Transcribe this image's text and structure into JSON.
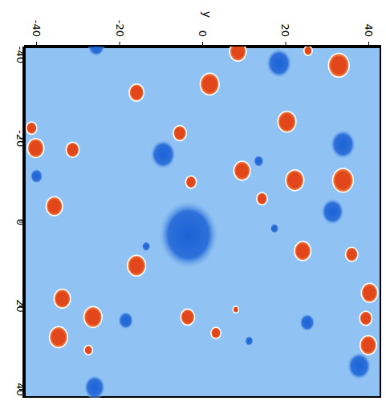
{
  "chart_data": {
    "type": "scatter",
    "xlabel": "y",
    "xlim": [
      -43,
      43
    ],
    "ylim": [
      -42,
      42
    ],
    "xticks": [
      -40,
      -20,
      0,
      20,
      40
    ],
    "yticks": [
      -40,
      -20,
      0,
      20,
      40
    ],
    "grid": false,
    "background": "#90c3f3",
    "series": [
      {
        "color": "#e2461b",
        "marker": "vortex",
        "x": [
          8.5,
          25.4,
          32.8,
          1.7,
          -15.9,
          20.3,
          -41.2,
          -40.2,
          -31.3,
          -5.5,
          9.5,
          22.2,
          33.8,
          -2.8,
          14.3,
          -35.7,
          24.1,
          35.9,
          -15.9,
          -33.8,
          -26.4,
          -3.6,
          -34.7,
          3.2,
          40.2,
          39.3,
          39.9,
          -27.5,
          8
        ],
        "y": [
          -40.8,
          -41,
          -37.5,
          -33,
          -31,
          -24,
          -22.5,
          -17.7,
          -17.3,
          -21.3,
          -12.3,
          -10,
          -10,
          -9.6,
          -5.6,
          -3.8,
          6.9,
          7.7,
          10.4,
          18.3,
          22.7,
          22.7,
          27.5,
          26.5,
          16.9,
          23,
          29.4,
          30.6,
          20.9
        ],
        "radius": [
          2,
          1,
          2.5,
          2.3,
          1.8,
          2.2,
          1.3,
          2,
          1.6,
          1.6,
          2,
          2.2,
          2.5,
          1.3,
          1.3,
          2,
          2,
          1.5,
          2.2,
          2,
          2.2,
          1.7,
          2.2,
          1.2,
          2,
          1.5,
          2,
          1,
          0.7
        ]
      },
      {
        "color": "#1c62d6",
        "marker": "vortex",
        "x": [
          -3.4,
          18.4,
          -9.5,
          33.8,
          31.3,
          -40,
          -18.5,
          25.2,
          37.7,
          -26,
          -25.6,
          13.5,
          17.3,
          11.2,
          -13.6
        ],
        "y": [
          3,
          -38,
          -16.2,
          -18.6,
          -2.5,
          -11,
          23.5,
          24,
          34.4,
          39.5,
          -42,
          -14.6,
          1.5,
          28.4,
          5.8
        ],
        "radius": [
          7,
          3,
          3,
          3,
          2.7,
          1.5,
          1.8,
          1.8,
          2.8,
          2.5,
          2,
          1.2,
          1,
          1,
          1
        ]
      }
    ]
  }
}
